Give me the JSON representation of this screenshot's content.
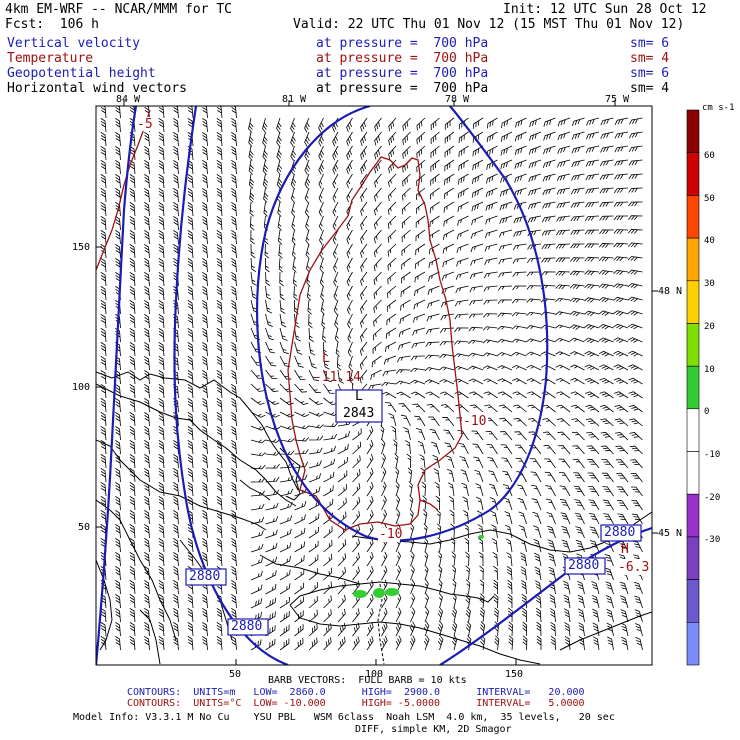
{
  "header": {
    "model": "4km EM-WRF -- NCAR/MMM for TC",
    "init": "Init: 12 UTC Sun 28 Oct 12",
    "fcst": "Fcst:  106 h",
    "valid": "Valid: 22 UTC Thu 01 Nov 12 (15 MST Thu 01 Nov 12)"
  },
  "fields": [
    {
      "name": "Vertical velocity",
      "at": "at pressure =  700 hPa",
      "sm": "sm= 6",
      "color": "#1c1cb4"
    },
    {
      "name": "Temperature",
      "at": "at pressure =  700 hPa",
      "sm": "sm= 4",
      "color": "#a01010"
    },
    {
      "name": "Geopotential height",
      "at": "at pressure =  700 hPa",
      "sm": "sm= 6",
      "color": "#1c1cb4"
    },
    {
      "name": "Horizontal wind vectors",
      "at": "at pressure =  700 hPa",
      "sm": "sm= 4",
      "color": "#000000"
    }
  ],
  "top_lon_labels": [
    "84 W",
    "81 W",
    "78 W",
    "75 W"
  ],
  "right_lat_labels": [
    "48 N",
    "45 N"
  ],
  "y_ticks": [
    "150",
    "100",
    "50"
  ],
  "x_ticks": [
    "50",
    "100",
    "150"
  ],
  "map_labels": {
    "low_letter": "L",
    "low_value": "2843",
    "t_low_letter": "L",
    "t_low_values": "-11.14",
    "high_letter": "H",
    "high_value": "-6.3",
    "minus5_a": "-5",
    "minus10_a": "-10",
    "minus10_b": "-10",
    "h2880_a": "2880",
    "h2880_b": "2880",
    "h2880_c": "2880",
    "h2880_d": "2880"
  },
  "colorbar": {
    "unit": "cm s-1",
    "labels": [
      "60",
      "50",
      "40",
      "30",
      "20",
      "10",
      "0",
      "-10",
      "-20",
      "-30"
    ],
    "colors": [
      "#8b0000",
      "#d00000",
      "#ff4500",
      "#ffa500",
      "#ffd000",
      "#7fe000",
      "#32cd32",
      "#ffffff",
      "#ffffff",
      "#9932cc",
      "#7b3fbf",
      "#6a5acd",
      "#7b8cff"
    ]
  },
  "footer": {
    "barb": "BARB VECTORS:  FULL BARB = 10 kts",
    "contours_m": "CONTOURS:  UNITS=m   LOW=  2860.0      HIGH=  2900.0      INTERVAL=   20.000",
    "contours_c": "CONTOURS:  UNITS=°C  LOW= -10.000      HIGH= -5.0000      INTERVAL=   5.0000",
    "model_info": "Model Info: V3.3.1 M No Cu    YSU PBL   WSM 6class  Noah LSM  4.0 km,  35 levels,   20 sec",
    "diff": "DIFF, simple KM, 2D Smagor"
  }
}
